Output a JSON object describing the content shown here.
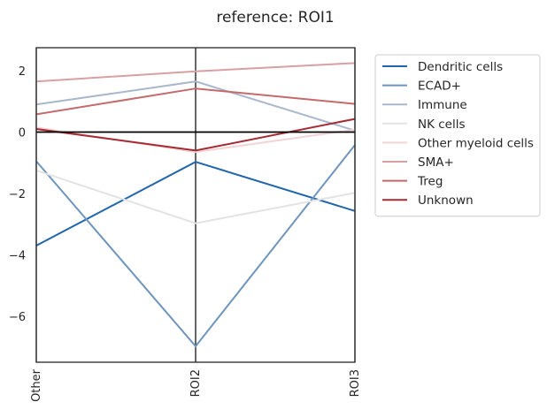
{
  "chart_data": {
    "type": "line",
    "title": "reference: ROI1",
    "xlabel": "",
    "ylabel": "",
    "categories": [
      "Other",
      "ROI2",
      "ROI3"
    ],
    "ylim": [
      -7.5,
      2.75
    ],
    "yticks": [
      2,
      0,
      -2,
      -4,
      -6
    ],
    "grid": false,
    "legend_position": "outside-right",
    "reference_line_y": 0,
    "series": [
      {
        "name": "Dendritic cells",
        "color": "#2166ac",
        "values": [
          -3.7,
          -0.97,
          -2.57
        ]
      },
      {
        "name": "ECAD+",
        "color": "#6e95bd",
        "values": [
          -0.95,
          -6.98,
          -0.42
        ]
      },
      {
        "name": "Immune",
        "color": "#a9b8cc",
        "values": [
          0.9,
          1.65,
          0.05
        ]
      },
      {
        "name": "NK cells",
        "color": "#e3e3e3",
        "values": [
          -1.25,
          -2.97,
          -1.98
        ]
      },
      {
        "name": "Other myeloid cells",
        "color": "#f3d4d6",
        "values": [
          0.15,
          -0.65,
          0.08
        ]
      },
      {
        "name": "SMA+",
        "color": "#d9a0a4",
        "values": [
          1.65,
          1.98,
          2.25
        ]
      },
      {
        "name": "Treg",
        "color": "#c46a6c",
        "values": [
          0.58,
          1.42,
          0.92
        ]
      },
      {
        "name": "Unknown",
        "color": "#a52a33",
        "values": [
          0.1,
          -0.6,
          0.43
        ]
      }
    ]
  }
}
